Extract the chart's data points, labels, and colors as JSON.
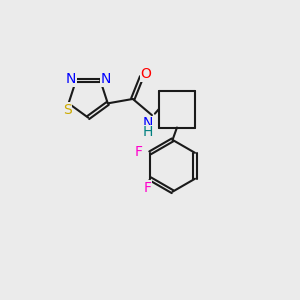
{
  "bg_color": "#ebebeb",
  "bond_color": "#1a1a1a",
  "atom_colors": {
    "N": "#0000ff",
    "S": "#ccaa00",
    "O": "#ff0000",
    "NH": "#008080",
    "F": "#ff00cc"
  },
  "bond_width": 1.5,
  "dbo": 0.06,
  "fs": 10
}
